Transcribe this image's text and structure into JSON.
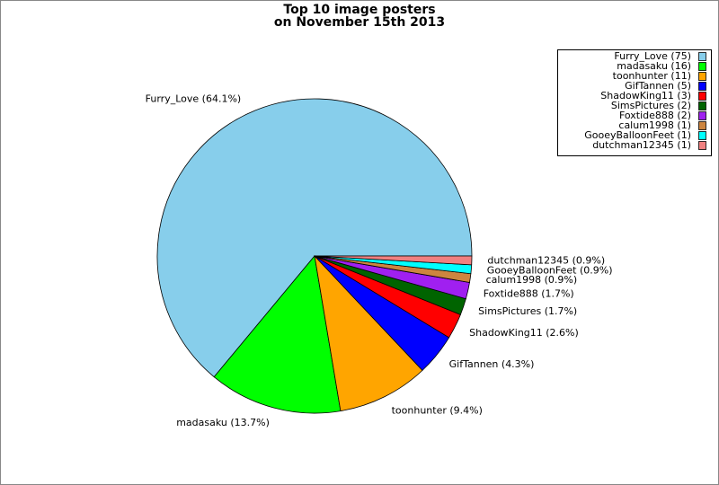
{
  "chart_data": {
    "type": "pie",
    "title": "Top 10 image posters",
    "subtitle": "on November 15th 2013",
    "categories": [
      "Furry_Love",
      "madasaku",
      "toonhunter",
      "GifTannen",
      "ShadowKing11",
      "SimsPictures",
      "Foxtide888",
      "calum1998",
      "GooeyBalloonFeet",
      "dutchman12345"
    ],
    "values": [
      64.1,
      13.7,
      9.4,
      4.3,
      2.6,
      1.7,
      1.7,
      0.9,
      0.9,
      0.9
    ],
    "value_labels": [
      "Furry_Love (64.1%)",
      "madasaku (13.7%)",
      "toonhunter (9.4%)",
      "GifTannen (4.3%)",
      "ShadowKing11 (2.6%)",
      "SimsPictures (1.7%)",
      "Foxtide888 (1.7%)",
      "calum1998 (0.9%)",
      "GooeyBalloonFeet (0.9%)",
      "dutchman12345 (0.9%)"
    ],
    "legend_labels": [
      "Furry_Love (75)",
      "madasaku (16)",
      "toonhunter (11)",
      "GifTannen (5)",
      "ShadowKing11 (3)",
      "SimsPictures (2)",
      "Foxtide888 (2)",
      "calum1998 (1)",
      "GooeyBalloonFeet (1)",
      "dutchman12345 (1)"
    ],
    "colors": [
      "#87ceeb",
      "#00ff00",
      "#ffa500",
      "#0000ff",
      "#ff0000",
      "#006400",
      "#a020f0",
      "#cd853f",
      "#00ffff",
      "#f08080"
    ],
    "legend": "upper right"
  }
}
